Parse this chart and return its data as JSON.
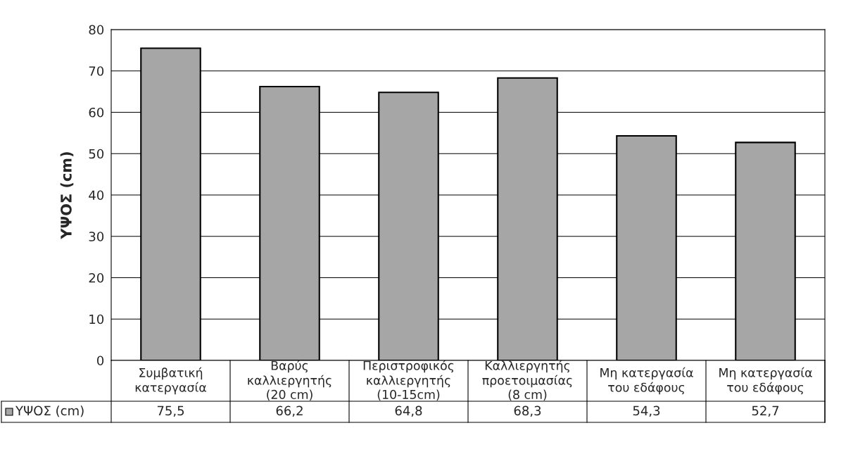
{
  "chart_data": {
    "type": "bar",
    "ylabel": "ΥΨΟΣ (cm)",
    "categories": [
      "Συμβατική\nκατεργασία",
      "Βαρύς\nκαλλιεργητής\n(20 cm)",
      "Περιστροφικός\nκαλλιεργητής\n(10-15cm)",
      "Καλλιεργητής\nπροετοιμασίας\n(8 cm)",
      "Μη κατεργασία\nτου εδάφους",
      "Μη κατεργασία\nτου εδάφους"
    ],
    "series": [
      {
        "name": "ΥΨΟΣ (cm)",
        "color": "#a6a6a6",
        "values": [
          75.5,
          66.2,
          64.8,
          68.3,
          54.3,
          52.7
        ],
        "value_labels": [
          "75,5",
          "66,2",
          "64,8",
          "68,3",
          "54,3",
          "52,7"
        ]
      }
    ],
    "ylim": [
      0,
      80
    ],
    "yticks": [
      0,
      10,
      20,
      30,
      40,
      50,
      60,
      70,
      80
    ],
    "grid": "y",
    "legend": "bottom left"
  }
}
